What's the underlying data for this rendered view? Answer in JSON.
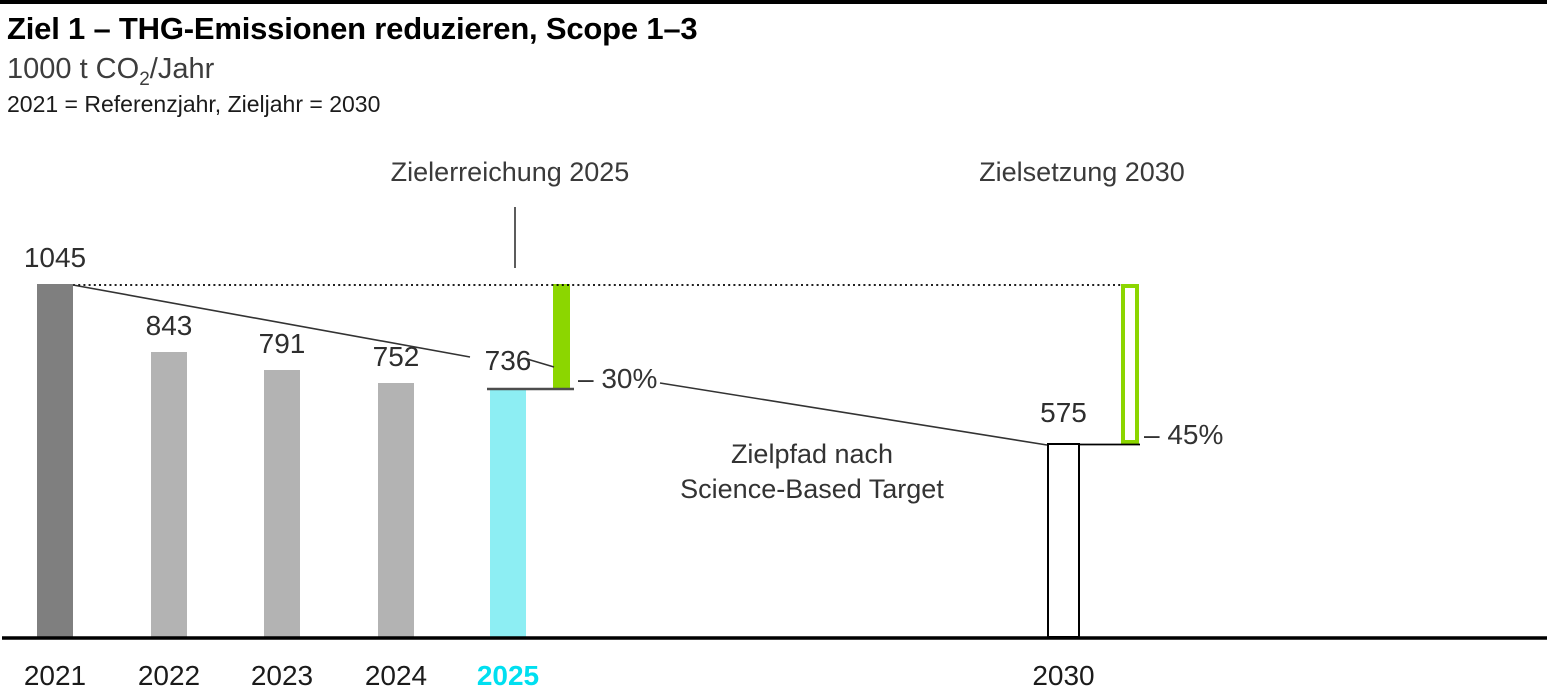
{
  "header": {
    "title": "Ziel 1 – THG-Emissionen reduzieren, Scope 1–3",
    "unit_prefix": "1000 t CO",
    "unit_sub": "2",
    "unit_suffix": "/Jahr",
    "reference_note": "2021 = Referenzjahr, Zieljahr = 2030"
  },
  "annotations": {
    "achievement_label": "Zielerreichung 2025",
    "target_label": "Zielsetzung 2030",
    "pathway_line1": "Zielpfad nach",
    "pathway_line2": "Science-Based Target",
    "reduction_2025": "– 30%",
    "reduction_2030": "– 45%"
  },
  "chart_data": {
    "type": "bar",
    "title": "Ziel 1 – THG-Emissionen reduzieren, Scope 1–3",
    "ylabel": "1000 t CO2/Jahr",
    "xlabel": "",
    "subtitle_note": "2021 = Referenzjahr, Zieljahr = 2030",
    "categories": [
      "2021",
      "2022",
      "2023",
      "2024",
      "2025",
      "2030"
    ],
    "values": [
      1045,
      843,
      791,
      752,
      736,
      575
    ],
    "reference_year": "2021",
    "reference_value": 1045,
    "target_year": "2030",
    "ylim": [
      0,
      1045
    ],
    "grid": false,
    "legend": "none",
    "bar_styles": [
      "dark",
      "gray",
      "gray",
      "gray",
      "cyan",
      "outline"
    ],
    "targets": [
      {
        "year": "2025",
        "label": "Zielerreichung 2025",
        "reduction_pct": -30,
        "value_reached": 736,
        "marker": "solid-green"
      },
      {
        "year": "2030",
        "label": "Zielsetzung 2030",
        "reduction_pct": -45,
        "target_value": 575,
        "marker": "outlined-green"
      }
    ],
    "pathway_annotation": "Zielpfad nach Science-Based Target",
    "colors": {
      "bar_dark": "#7f7f7f",
      "bar_gray": "#b3b3b3",
      "bar_cyan": "#8deef3",
      "cyan_accent": "#00dff0",
      "green_accent": "#8cd600",
      "line": "#333333",
      "axis": "#000000"
    }
  }
}
